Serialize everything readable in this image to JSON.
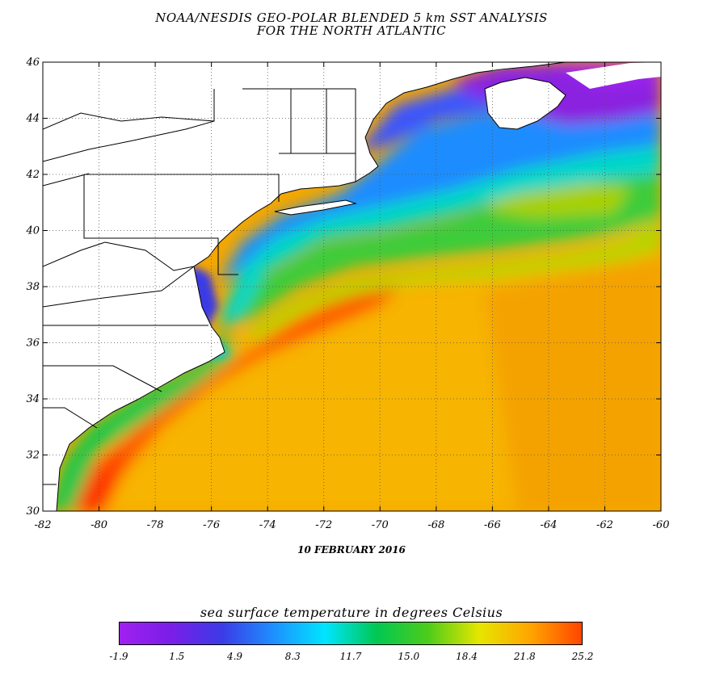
{
  "title_line1": "NOAA/NESDIS GEO-POLAR BLENDED 5 km SST ANALYSIS",
  "title_line2": "FOR THE NORTH ATLANTIC",
  "date": "10 FEBRUARY 2016",
  "map": {
    "lon_range": [
      -82,
      -60
    ],
    "lat_range": [
      30,
      46
    ],
    "lon_ticks": [
      "-82",
      "-80",
      "-78",
      "-76",
      "-74",
      "-72",
      "-70",
      "-68",
      "-66",
      "-64",
      "-62",
      "-60"
    ],
    "lat_ticks": [
      "30",
      "32",
      "34",
      "36",
      "38",
      "40",
      "42",
      "44",
      "46"
    ],
    "grid": true
  },
  "colorbar": {
    "title": "sea surface temperature in degrees Celsius",
    "ticks": [
      "-1.9",
      "1.5",
      "4.9",
      "8.3",
      "11.7",
      "15.0",
      "18.4",
      "21.8",
      "25.2"
    ],
    "colors": [
      "#a020f0",
      "#7a1ee8",
      "#3b3be6",
      "#1e90ff",
      "#00e5ff",
      "#00c853",
      "#4ccc1a",
      "#e6e600",
      "#ffa500",
      "#ff4500"
    ]
  },
  "colors": {
    "land": "#ffffff",
    "cold_water": "#8a2be2",
    "warm_water": "#ff8c00",
    "gulf_stream": "#ff5a00"
  }
}
